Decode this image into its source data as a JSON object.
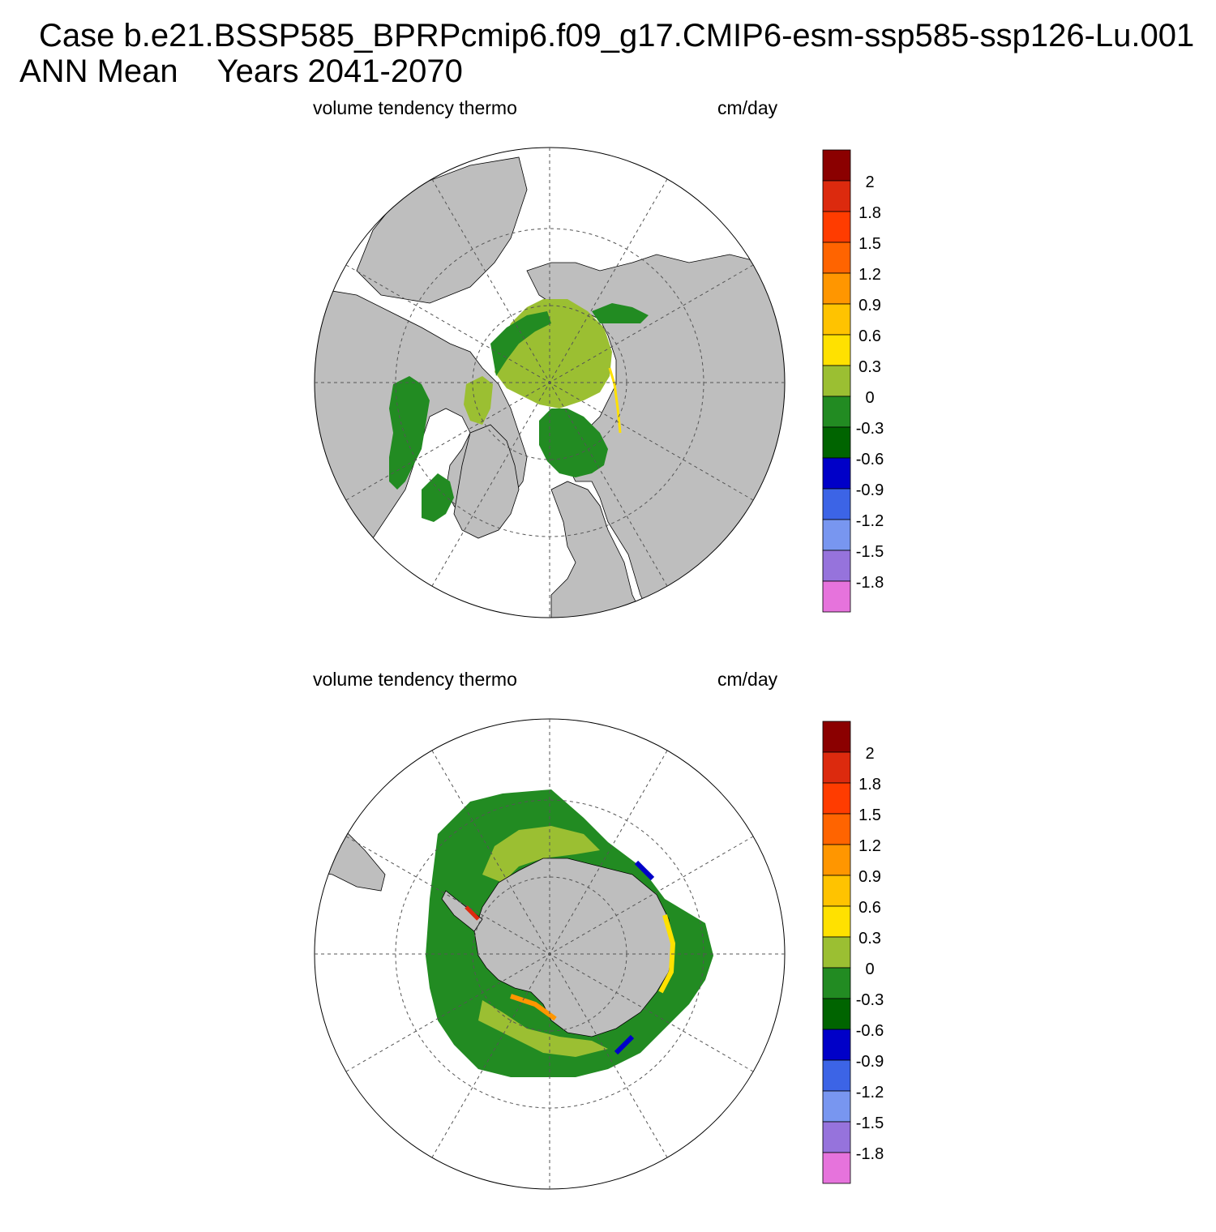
{
  "header": {
    "case_line": "Case b.e21.BSSP585_BPRPcmip6.f09_g17.CMIP6-esm-ssp585-ssp126-Lu.001",
    "season": "ANN Mean",
    "years": "Years 2041-2070"
  },
  "panels": [
    {
      "variable_label": "volume tendency thermo",
      "units_label": "cm/day",
      "hemisphere": "north",
      "projection": "polar stereographic"
    },
    {
      "variable_label": "volume tendency thermo",
      "units_label": "cm/day",
      "hemisphere": "south",
      "projection": "polar stereographic"
    }
  ],
  "colorbar": {
    "labels": [
      "2",
      "1.8",
      "1.5",
      "1.2",
      "0.9",
      "0.6",
      "0.3",
      "0",
      "-0.3",
      "-0.6",
      "-0.9",
      "-1.2",
      "-1.5",
      "-1.8"
    ],
    "colors": [
      "#8b0000",
      "#dc2a0e",
      "#ff3c00",
      "#ff6400",
      "#ff9600",
      "#ffc300",
      "#ffe100",
      "#9bbf32",
      "#228b22",
      "#006400",
      "#0000c8",
      "#3c64e6",
      "#7896f0",
      "#9673dc",
      "#e673dc"
    ]
  },
  "map_colors": {
    "land": "#bebebe",
    "open_ocean": "#ffffff",
    "grid": "#555555"
  }
}
